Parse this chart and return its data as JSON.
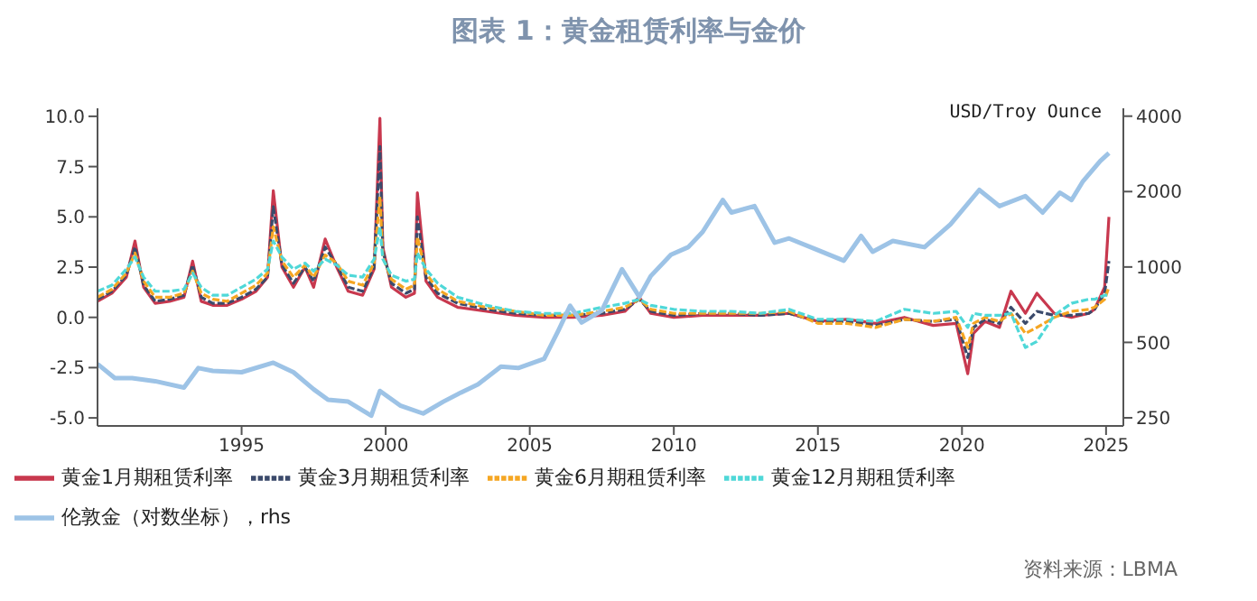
{
  "chart_data": {
    "type": "line",
    "title": "图表 1：黄金租赁利率与金价",
    "y2label": "USD/Troy Ounce",
    "annotations": [
      "资料来源：LBMA"
    ],
    "x": [
      1990.0,
      1990.5,
      1991.0,
      1991.3,
      1991.6,
      1992.0,
      1992.5,
      1993.0,
      1993.3,
      1993.6,
      1994.0,
      1994.5,
      1995.0,
      1995.5,
      1995.9,
      1996.1,
      1996.4,
      1996.8,
      1997.2,
      1997.5,
      1997.9,
      1998.3,
      1998.7,
      1999.2,
      1999.6,
      1999.8,
      1999.9,
      2000.2,
      2000.7,
      2001.0,
      2001.1,
      2001.4,
      2001.8,
      2002.5,
      2003.5,
      2004.5,
      2005.5,
      2006.5,
      2007.5,
      2008.3,
      2008.8,
      2009.2,
      2010,
      2011,
      2012,
      2013,
      2014,
      2015,
      2016,
      2017,
      2018,
      2019,
      2019.8,
      2020.2,
      2020.4,
      2020.8,
      2021.3,
      2021.7,
      2022.2,
      2022.6,
      2023.2,
      2023.8,
      2024.4,
      2024.6,
      2024.95,
      2025.1
    ],
    "series": [
      {
        "name": "黄金1月期租赁利率",
        "color": "#c8384e",
        "line_style": "solid",
        "values": [
          0.8,
          1.2,
          2.0,
          3.8,
          1.5,
          0.7,
          0.8,
          1.0,
          2.8,
          0.8,
          0.6,
          0.6,
          0.9,
          1.3,
          2.0,
          6.3,
          2.5,
          1.5,
          2.5,
          1.5,
          3.9,
          2.5,
          1.3,
          1.1,
          2.4,
          9.9,
          3.5,
          1.5,
          1.0,
          1.2,
          6.2,
          1.8,
          1.0,
          0.5,
          0.3,
          0.1,
          0.0,
          0.0,
          0.1,
          0.3,
          1.0,
          0.2,
          0.0,
          0.1,
          0.1,
          0.1,
          0.2,
          -0.2,
          -0.1,
          -0.3,
          0.0,
          -0.4,
          -0.3,
          -2.8,
          -0.8,
          -0.2,
          -0.5,
          1.3,
          0.2,
          1.2,
          0.2,
          0.0,
          0.2,
          0.4,
          1.5,
          5.0
        ]
      },
      {
        "name": "黄金3月期租赁利率",
        "color": "#3b4a6b",
        "line_style": "dashed",
        "values": [
          0.9,
          1.3,
          2.1,
          3.5,
          1.6,
          0.8,
          0.9,
          1.1,
          2.6,
          1.0,
          0.7,
          0.7,
          1.0,
          1.4,
          2.0,
          5.5,
          2.6,
          1.7,
          2.5,
          1.8,
          3.5,
          2.6,
          1.5,
          1.3,
          2.5,
          8.5,
          3.3,
          1.7,
          1.2,
          1.4,
          5.0,
          2.0,
          1.2,
          0.7,
          0.4,
          0.2,
          0.1,
          0.1,
          0.2,
          0.4,
          0.9,
          0.3,
          0.1,
          0.2,
          0.2,
          0.1,
          0.2,
          -0.2,
          -0.2,
          -0.4,
          -0.1,
          -0.2,
          -0.1,
          -2.0,
          -0.5,
          -0.1,
          -0.3,
          0.5,
          -0.3,
          0.3,
          0.1,
          0.1,
          0.2,
          0.4,
          1.2,
          2.8
        ]
      },
      {
        "name": "黄金6月期租赁利率",
        "color": "#f5a623",
        "line_style": "dashed",
        "values": [
          1.0,
          1.4,
          2.2,
          3.2,
          1.8,
          1.0,
          1.0,
          1.2,
          2.3,
          1.2,
          0.9,
          0.8,
          1.2,
          1.6,
          2.2,
          4.5,
          2.8,
          2.0,
          2.6,
          2.0,
          3.1,
          2.7,
          1.8,
          1.6,
          2.7,
          6.0,
          3.0,
          1.9,
          1.4,
          1.6,
          4.0,
          2.2,
          1.4,
          0.8,
          0.5,
          0.3,
          0.1,
          0.1,
          0.3,
          0.5,
          0.9,
          0.4,
          0.2,
          0.2,
          0.2,
          0.2,
          0.3,
          -0.3,
          -0.3,
          -0.5,
          -0.1,
          -0.2,
          0.0,
          -1.5,
          -0.3,
          0.0,
          -0.2,
          0.2,
          -0.8,
          -0.5,
          0.0,
          0.3,
          0.4,
          0.5,
          0.9,
          1.5
        ]
      },
      {
        "name": "黄金12月期租赁利率",
        "color": "#4fd8d8",
        "line_style": "dashed",
        "values": [
          1.3,
          1.6,
          2.4,
          3.0,
          2.0,
          1.3,
          1.3,
          1.4,
          2.2,
          1.5,
          1.1,
          1.1,
          1.5,
          1.9,
          2.4,
          3.8,
          3.0,
          2.4,
          2.7,
          2.3,
          2.9,
          2.6,
          2.1,
          2.0,
          2.9,
          4.5,
          2.9,
          2.1,
          1.8,
          1.9,
          3.2,
          2.4,
          1.7,
          1.0,
          0.6,
          0.3,
          0.2,
          0.2,
          0.5,
          0.7,
          0.9,
          0.6,
          0.4,
          0.3,
          0.3,
          0.2,
          0.4,
          -0.1,
          -0.1,
          -0.2,
          0.4,
          0.2,
          0.3,
          -0.5,
          0.2,
          0.1,
          0.1,
          0.2,
          -1.5,
          -1.2,
          0.1,
          0.7,
          0.9,
          0.9,
          1.1,
          1.1
        ]
      },
      {
        "name": "伦敦金（对数坐标），rhs",
        "color": "#9dc3e6",
        "line_style": "solid",
        "axis": "y2",
        "x": [
          1990.0,
          1990.6,
          1991.2,
          1992,
          1993.0,
          1993.5,
          1994,
          1995,
          1996.1,
          1996.8,
          1997.5,
          1998,
          1998.7,
          1999.5,
          1999.8,
          2000.5,
          2001.3,
          2002,
          2002.6,
          2003.2,
          2004,
          2004.6,
          2005.5,
          2006.0,
          2006.4,
          2006.8,
          2007.5,
          2008.2,
          2008.8,
          2009.2,
          2009.9,
          2010.5,
          2011.0,
          2011.7,
          2012.0,
          2012.8,
          2013.5,
          2014.0,
          2014.9,
          2015.9,
          2016.5,
          2016.9,
          2017.6,
          2018.7,
          2019.6,
          2020.6,
          2021.3,
          2022.2,
          2022.8,
          2023.4,
          2023.8,
          2024.2,
          2024.8,
          2025.1
        ],
        "values": [
          410,
          360,
          360,
          350,
          330,
          395,
          385,
          380,
          415,
          380,
          325,
          295,
          290,
          255,
          320,
          280,
          260,
          290,
          315,
          340,
          400,
          395,
          430,
          560,
          700,
          600,
          670,
          980,
          760,
          920,
          1120,
          1200,
          1380,
          1850,
          1650,
          1750,
          1250,
          1300,
          1180,
          1060,
          1330,
          1150,
          1270,
          1200,
          1480,
          2030,
          1750,
          1920,
          1650,
          1980,
          1850,
          2200,
          2650,
          2850
        ]
      }
    ],
    "xlim": [
      1990,
      2025.6
    ],
    "xticks": [
      1995,
      2000,
      2005,
      2010,
      2015,
      2020,
      2025
    ],
    "ylim": [
      -5.4,
      10.4
    ],
    "yticks": [
      {
        "value": -5,
        "label": "-5.0"
      },
      {
        "value": -2.5,
        "label": "-2.5"
      },
      {
        "value": 0,
        "label": "0.0"
      },
      {
        "value": 2.5,
        "label": "2.5"
      },
      {
        "value": 5,
        "label": "5.0"
      },
      {
        "value": 7.5,
        "label": "7.5"
      },
      {
        "value": 10,
        "label": "10.0"
      }
    ],
    "y2lim": [
      232,
      4300
    ],
    "y2ticks": [
      250,
      500,
      1000,
      2000,
      4000
    ],
    "log": "y2",
    "legend": "bottom",
    "marker": "none"
  }
}
